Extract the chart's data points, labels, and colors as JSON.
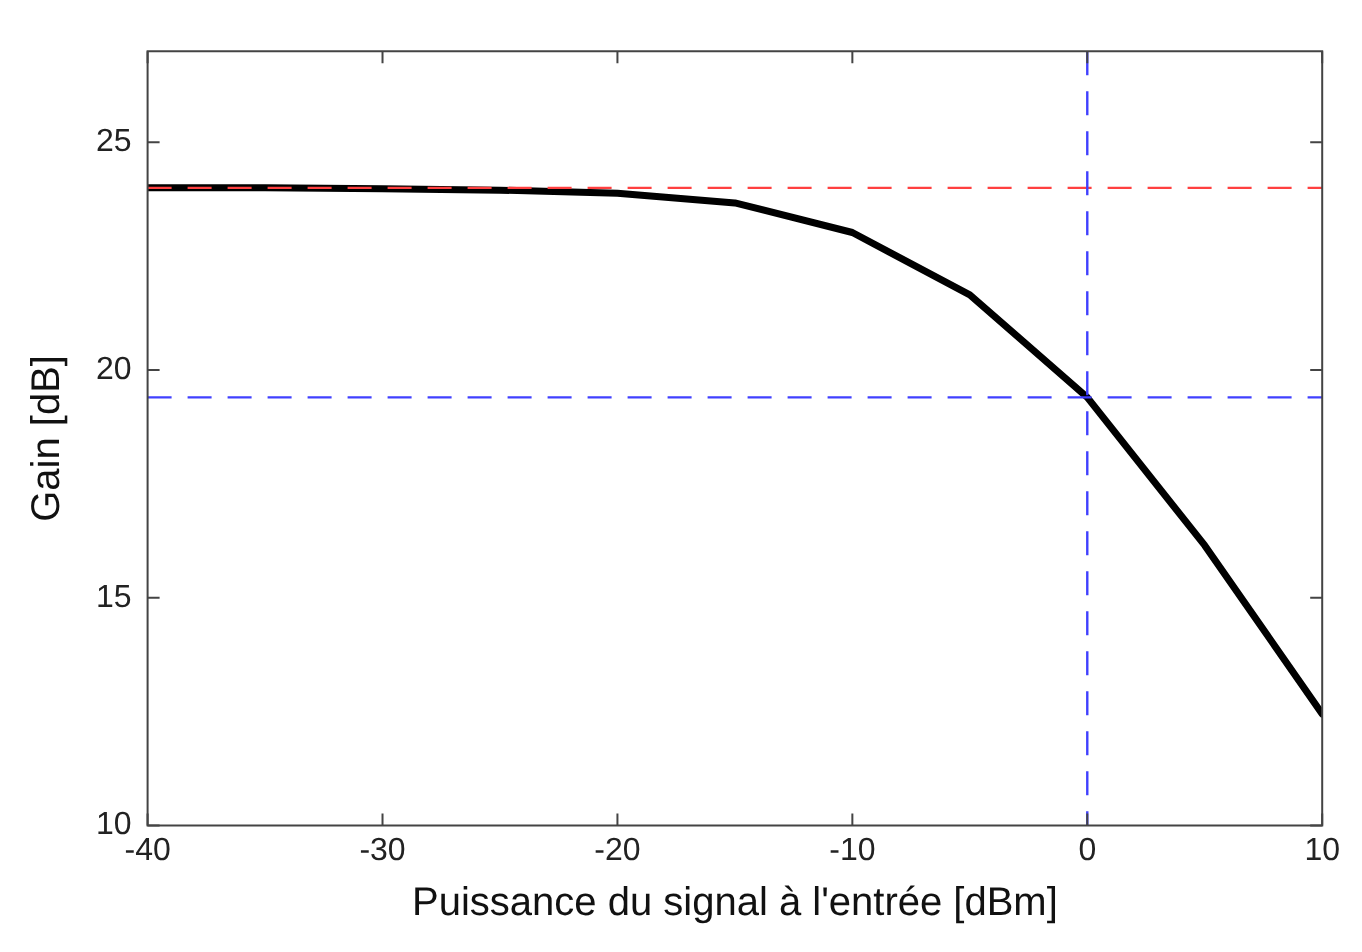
{
  "chart_data": {
    "type": "line",
    "xlabel": "Puissance du signal à l'entrée [dBm]",
    "ylabel": "Gain [dB]",
    "x": [
      -40,
      -35,
      -30,
      -25,
      -20,
      -15,
      -10,
      -5,
      0,
      5,
      10
    ],
    "series": [
      {
        "color": "#000000",
        "values": [
          24.0,
          24.0,
          23.98,
          23.95,
          23.88,
          23.67,
          23.02,
          21.65,
          19.4,
          16.15,
          12.45
        ]
      }
    ],
    "xlim": [
      -40,
      10
    ],
    "xticks": [
      -40,
      -30,
      -20,
      -10,
      0,
      10
    ],
    "ylim": [
      10,
      27
    ],
    "yticks": [
      10,
      15,
      20,
      25
    ],
    "grid": false,
    "legend": false,
    "marker": "none",
    "line_style": "solid",
    "ref_lines": [
      {
        "axis": "y",
        "value": 24,
        "color": "#ff4040",
        "line_style": "dashed"
      },
      {
        "axis": "y",
        "value": 19.4,
        "color": "#4040ff",
        "line_style": "dashed"
      },
      {
        "axis": "x",
        "value": 0,
        "color": "#4040ff",
        "line_style": "dashed"
      }
    ]
  }
}
